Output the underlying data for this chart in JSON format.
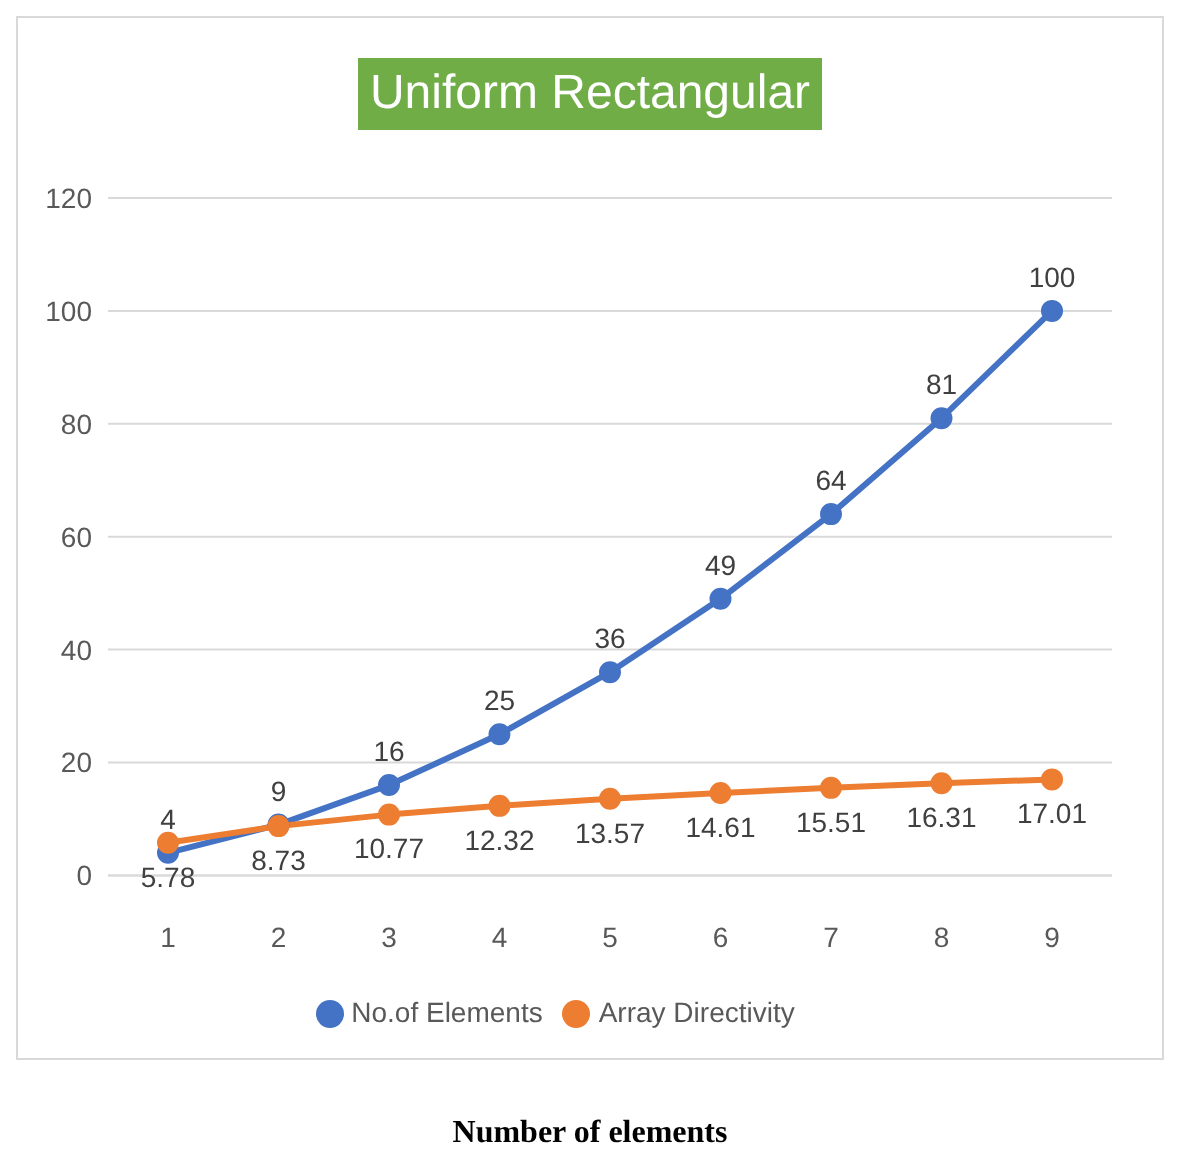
{
  "chart_data": {
    "type": "line",
    "title": "Uniform Rectangular",
    "annotations": [
      "Number of elements"
    ],
    "categories": [
      "1",
      "2",
      "3",
      "4",
      "5",
      "6",
      "7",
      "8",
      "9"
    ],
    "series": [
      {
        "name": "No.of Elements",
        "color": "#4472c4",
        "values": [
          4,
          9,
          16,
          25,
          36,
          49,
          64,
          81,
          100
        ]
      },
      {
        "name": "Array Directivity",
        "color": "#ed7d31",
        "values": [
          5.78,
          8.73,
          10.77,
          12.32,
          13.57,
          14.61,
          15.51,
          16.31,
          17.01
        ]
      }
    ],
    "ylim": [
      0,
      120
    ],
    "yticks": [
      0,
      20,
      40,
      60,
      80,
      100,
      120
    ],
    "grid": "y",
    "legend": "bottom",
    "marker": "circle",
    "data_labels": true
  }
}
